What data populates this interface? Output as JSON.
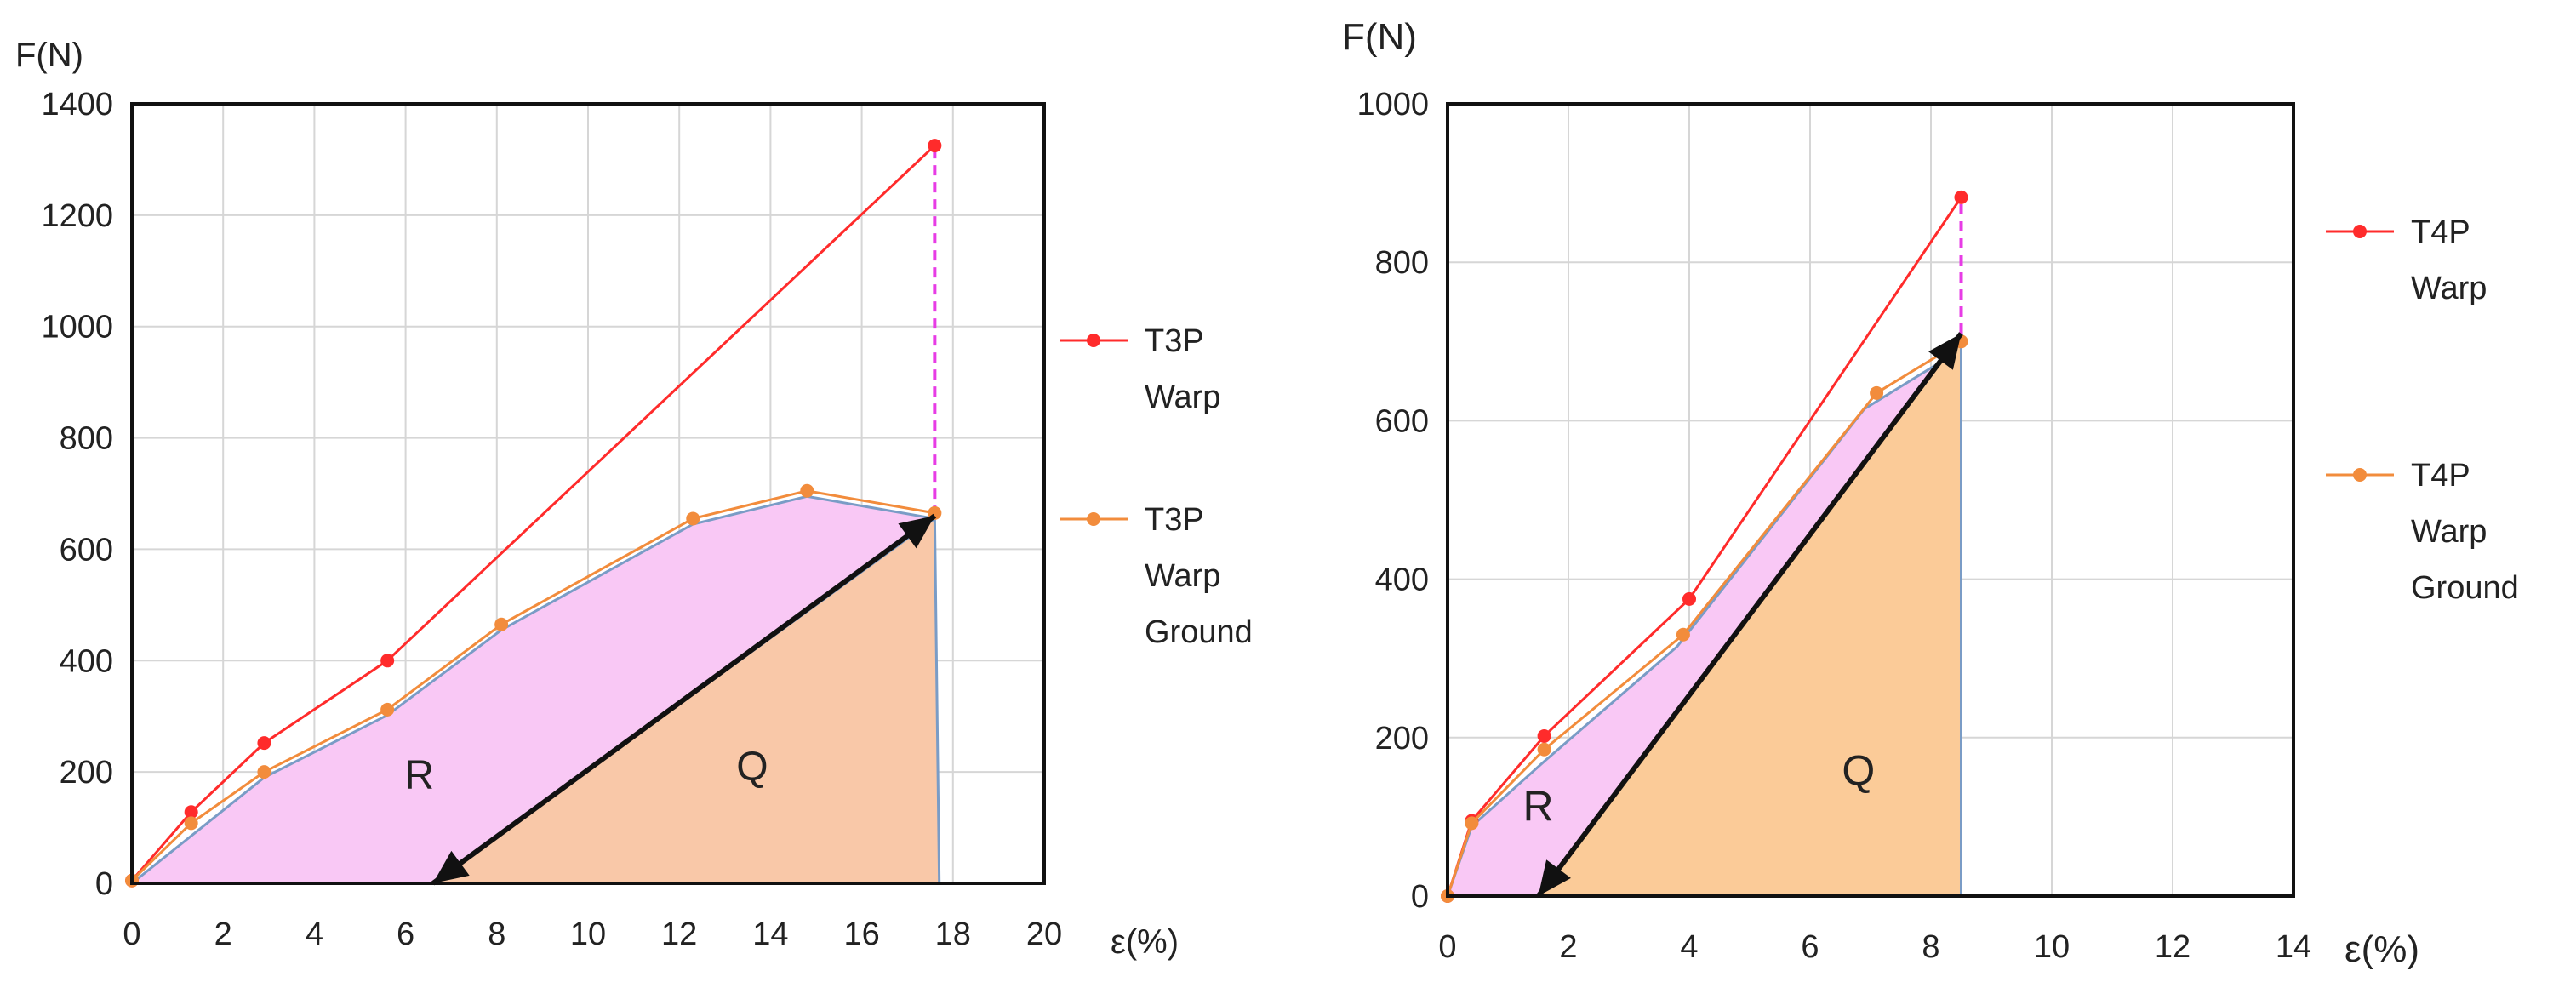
{
  "chart_data": [
    {
      "type": "line",
      "xlabel": "ε(%)",
      "ylabel": "F(N)",
      "xlim": [
        0,
        20
      ],
      "ylim": [
        0,
        1400
      ],
      "xticks": [
        0,
        2,
        4,
        6,
        8,
        10,
        12,
        14,
        16,
        18,
        20
      ],
      "yticks": [
        0,
        200,
        400,
        600,
        800,
        1000,
        1200,
        1400
      ],
      "grid": true,
      "legend_position": "right",
      "series": [
        {
          "name": "T3P Warp",
          "name_lines": [
            "T3P",
            "Warp"
          ],
          "color": "#ff2b2b",
          "points": [
            [
              0,
              5
            ],
            [
              1.3,
              128
            ],
            [
              2.9,
              252
            ],
            [
              5.6,
              400
            ],
            [
              17.6,
              1325
            ]
          ]
        },
        {
          "name": "T3P Warp Ground",
          "name_lines": [
            "T3P",
            "Warp",
            "Ground"
          ],
          "color": "#f28c3c",
          "points": [
            [
              0,
              5
            ],
            [
              1.3,
              108
            ],
            [
              2.9,
              200
            ],
            [
              5.6,
              312
            ],
            [
              8.1,
              465
            ],
            [
              12.3,
              655
            ],
            [
              14.8,
              705
            ],
            [
              17.6,
              665
            ]
          ]
        }
      ],
      "regions": [
        {
          "label": "R",
          "color": "#f9c8f5",
          "points": [
            [
              0,
              0
            ],
            [
              2.9,
              190
            ],
            [
              5.6,
              302
            ],
            [
              8.1,
              455
            ],
            [
              12.3,
              645
            ],
            [
              14.8,
              695
            ],
            [
              17.6,
              655
            ],
            [
              6.6,
              0
            ]
          ]
        },
        {
          "label": "Q",
          "color": "#f9c8a8",
          "points": [
            [
              6.6,
              0
            ],
            [
              17.6,
              655
            ],
            [
              17.7,
              0
            ]
          ]
        }
      ],
      "arrow": {
        "from": [
          6.6,
          0
        ],
        "to": [
          17.6,
          660
        ],
        "color": "#111111"
      },
      "dashed_line": {
        "x": 17.6,
        "from": 660,
        "to": 1325,
        "color": "#e73ce5"
      },
      "region_labels": [
        {
          "text": "R",
          "x": 6.3,
          "y": 170
        },
        {
          "text": "Q",
          "x": 13.6,
          "y": 185
        }
      ]
    },
    {
      "type": "line",
      "xlabel": "ε(%)",
      "ylabel": "F(N)",
      "xlim": [
        0,
        14
      ],
      "ylim": [
        0,
        1000
      ],
      "xticks": [
        0,
        2,
        4,
        6,
        8,
        10,
        12,
        14
      ],
      "xtick_labels": [
        "0",
        "2",
        "4",
        "6",
        "8",
        "10",
        "12",
        "14"
      ],
      "yticks": [
        0,
        200,
        400,
        600,
        800,
        1000
      ],
      "grid": true,
      "legend_position": "right",
      "series": [
        {
          "name": "T4P Warp",
          "name_lines": [
            "T4P",
            "Warp"
          ],
          "color": "#ff2b2b",
          "points": [
            [
              0,
              0
            ],
            [
              0.4,
              95
            ],
            [
              1.6,
              202
            ],
            [
              4.0,
              375
            ],
            [
              8.5,
              882
            ]
          ]
        },
        {
          "name": "T4P Warp Ground",
          "name_lines": [
            "T4P",
            "Warp",
            "Ground"
          ],
          "color": "#f28c3c",
          "points": [
            [
              0,
              0
            ],
            [
              0.4,
              92
            ],
            [
              1.6,
              185
            ],
            [
              3.9,
              330
            ],
            [
              7.1,
              635
            ],
            [
              8.5,
              700
            ]
          ]
        }
      ],
      "regions": [
        {
          "label": "R",
          "color": "#f9c8f5",
          "points": [
            [
              0,
              0
            ],
            [
              0.4,
              88
            ],
            [
              1.6,
              170
            ],
            [
              3.8,
              315
            ],
            [
              6.9,
              615
            ],
            [
              8.5,
              690
            ],
            [
              1.5,
              0
            ]
          ]
        },
        {
          "label": "Q",
          "color": "#fbcb98",
          "points": [
            [
              1.5,
              0
            ],
            [
              8.5,
              710
            ],
            [
              8.5,
              0
            ]
          ]
        }
      ],
      "arrow": {
        "from": [
          1.5,
          0
        ],
        "to": [
          8.5,
          710
        ],
        "color": "#111111"
      },
      "dashed_line": {
        "x": 8.5,
        "from": 710,
        "to": 882,
        "color": "#e73ce5"
      },
      "region_labels": [
        {
          "text": "R",
          "x": 1.5,
          "y": 95
        },
        {
          "text": "Q",
          "x": 6.8,
          "y": 140
        }
      ]
    }
  ]
}
